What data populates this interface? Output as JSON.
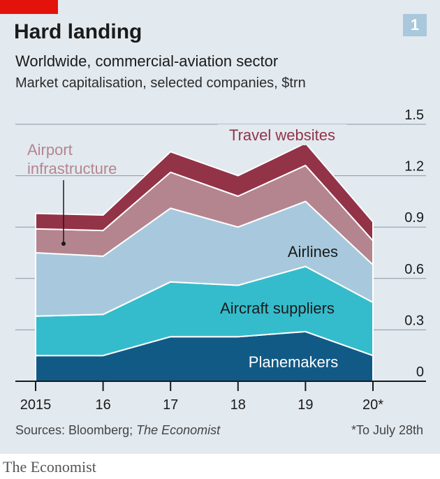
{
  "header": {
    "chart_number": "1",
    "title": "Hard landing",
    "subtitle": "Worldwide, commercial-aviation sector",
    "unit": "Market capitalisation, selected companies, $trn"
  },
  "footer": {
    "source_prefix": "Sources: Bloomberg; ",
    "source_italic": "The Economist",
    "footnote": "*To July 28th",
    "brand": "The Economist"
  },
  "colors": {
    "background": "#e2e9ef",
    "red_tag": "#e3120b",
    "number_box": "#a9c8dc"
  },
  "chart_data": {
    "type": "area",
    "stacked": true,
    "title": "Hard landing",
    "subtitle": "Worldwide, commercial-aviation sector",
    "ylabel": "Market capitalisation, selected companies, $trn",
    "x": [
      "2015",
      "16",
      "17",
      "18",
      "19",
      "20*"
    ],
    "ylim": [
      0,
      1.5
    ],
    "yticks": [
      0,
      0.3,
      0.6,
      0.9,
      1.2,
      1.5
    ],
    "ytick_labels": [
      "0",
      "0.3",
      "0.6",
      "0.9",
      "1.2",
      "1.5"
    ],
    "y_axis_side": "right",
    "grid": true,
    "series": [
      {
        "name": "Planemakers",
        "color": "#125a86",
        "label_color": "#ffffff",
        "values": [
          0.15,
          0.15,
          0.26,
          0.26,
          0.29,
          0.15
        ]
      },
      {
        "name": "Aircraft suppliers",
        "color": "#35bccc",
        "label_color": "#1a1a1a",
        "values": [
          0.23,
          0.24,
          0.32,
          0.3,
          0.38,
          0.31
        ]
      },
      {
        "name": "Airlines",
        "color": "#a8c9dd",
        "label_color": "#1a1a1a",
        "values": [
          0.37,
          0.34,
          0.43,
          0.34,
          0.38,
          0.22
        ]
      },
      {
        "name": "Airport infrastructure",
        "color": "#b4858f",
        "label_color": "#b4858f",
        "values": [
          0.14,
          0.15,
          0.21,
          0.18,
          0.21,
          0.14
        ]
      },
      {
        "name": "Travel websites",
        "color": "#923347",
        "label_color": "#923347",
        "values": [
          0.09,
          0.09,
          0.12,
          0.12,
          0.13,
          0.11
        ]
      }
    ],
    "annotations": [
      {
        "text": "Travel websites",
        "series": "Travel websites"
      },
      {
        "text": "Airport infrastructure",
        "series": "Airport infrastructure",
        "lines": [
          "Airport",
          "infrastructure"
        ]
      },
      {
        "text": "Airlines",
        "series": "Airlines"
      },
      {
        "text": "Aircraft suppliers",
        "series": "Aircraft suppliers"
      },
      {
        "text": "Planemakers",
        "series": "Planemakers"
      }
    ]
  }
}
